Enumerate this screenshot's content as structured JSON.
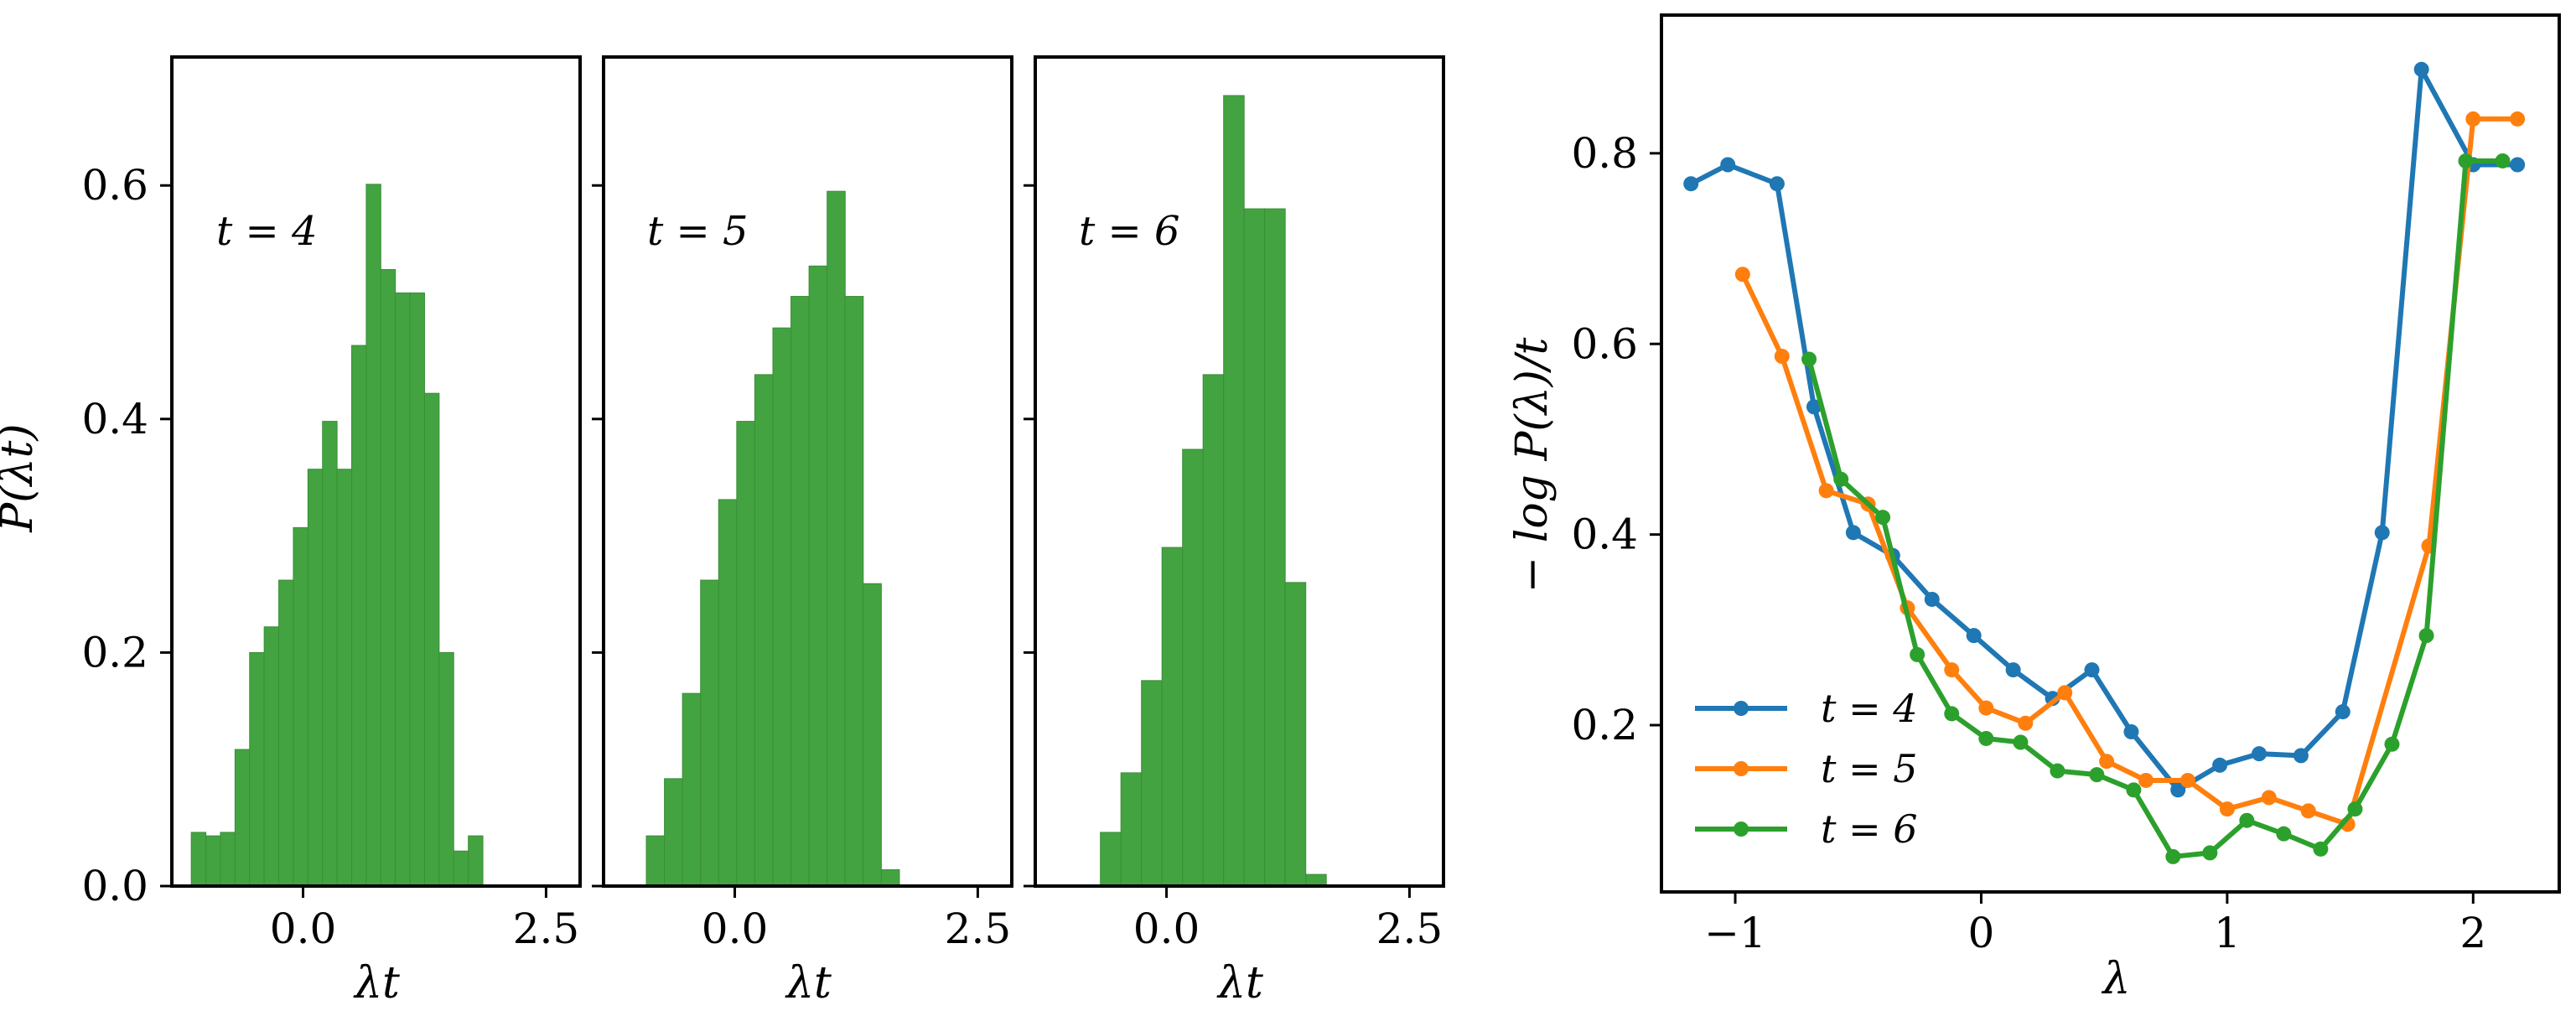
{
  "chart_data": [
    {
      "type": "bar",
      "title": "",
      "annotation": "t = 4",
      "xlabel": "λt",
      "ylabel": "P(λt)",
      "xlim": [
        -1.35,
        2.85
      ],
      "ylim": [
        0.0,
        0.71
      ],
      "xticks": [
        0.0,
        2.5
      ],
      "xtick_labels": [
        "0.0",
        "2.5"
      ],
      "yticks": [
        0.0,
        0.2,
        0.4,
        0.6
      ],
      "ytick_labels": [
        "0.0",
        "0.2",
        "0.4",
        "0.6"
      ],
      "bin_start": -1.15,
      "bin_width": 0.15,
      "values": [
        0.046,
        0.043,
        0.046,
        0.117,
        0.2,
        0.222,
        0.262,
        0.307,
        0.357,
        0.398,
        0.357,
        0.463,
        0.601,
        0.528,
        0.508,
        0.508,
        0.422,
        0.2,
        0.03,
        0.043
      ],
      "color": "#43a341"
    },
    {
      "type": "bar",
      "title": "",
      "annotation": "t = 5",
      "xlabel": "λt",
      "ylabel": "",
      "xlim": [
        -1.35,
        2.85
      ],
      "ylim": [
        0.0,
        0.71
      ],
      "xticks": [
        0.0,
        2.5
      ],
      "xtick_labels": [
        "0.0",
        "2.5"
      ],
      "yticks": [
        0.0,
        0.2,
        0.4,
        0.6
      ],
      "bin_start": -0.91,
      "bin_width": 0.186,
      "values": [
        0.043,
        0.092,
        0.165,
        0.262,
        0.331,
        0.398,
        0.438,
        0.478,
        0.505,
        0.531,
        0.595,
        0.505,
        0.259,
        0.014
      ],
      "color": "#43a341"
    },
    {
      "type": "bar",
      "title": "",
      "annotation": "t = 6",
      "xlabel": "λt",
      "ylabel": "",
      "xlim": [
        -1.35,
        2.85
      ],
      "ylim": [
        0.0,
        0.71
      ],
      "xticks": [
        0.0,
        2.5
      ],
      "xtick_labels": [
        "0.0",
        "2.5"
      ],
      "yticks": [
        0.0,
        0.2,
        0.4,
        0.6
      ],
      "bin_start": -0.68,
      "bin_width": 0.2113,
      "values": [
        0.046,
        0.097,
        0.176,
        0.29,
        0.374,
        0.438,
        0.677,
        0.58,
        0.58,
        0.26,
        0.01
      ],
      "color": "#43a341"
    },
    {
      "type": "line",
      "title": "",
      "xlabel": "λ",
      "ylabel": "− log P(λ)/t",
      "xlim": [
        -1.3,
        2.35
      ],
      "ylim": [
        0.025,
        0.945
      ],
      "xticks": [
        -1,
        0,
        1,
        2
      ],
      "xtick_labels": [
        "−1",
        "0",
        "1",
        "2"
      ],
      "yticks": [
        0.2,
        0.4,
        0.6,
        0.8
      ],
      "ytick_labels": [
        "0.2",
        "0.4",
        "0.6",
        "0.8"
      ],
      "legend_position": "lower-left",
      "series": [
        {
          "name": "t = 4",
          "color": "#1f77b4",
          "x": [
            -1.18,
            -1.03,
            -0.83,
            -0.68,
            -0.52,
            -0.36,
            -0.2,
            -0.03,
            0.13,
            0.29,
            0.45,
            0.61,
            0.8,
            0.97,
            1.13,
            1.3,
            1.47,
            1.63,
            1.79,
            2.0,
            2.18
          ],
          "y": [
            0.768,
            0.788,
            0.768,
            0.534,
            0.402,
            0.378,
            0.332,
            0.294,
            0.258,
            0.228,
            0.258,
            0.193,
            0.132,
            0.158,
            0.17,
            0.168,
            0.214,
            0.402,
            0.888,
            0.788,
            0.788
          ]
        },
        {
          "name": "t = 5",
          "color": "#ff7f0e",
          "x": [
            -0.97,
            -0.81,
            -0.63,
            -0.46,
            -0.3,
            -0.12,
            0.02,
            0.18,
            0.34,
            0.51,
            0.67,
            0.84,
            1.0,
            1.17,
            1.33,
            1.49,
            1.82,
            2.0,
            2.18
          ],
          "y": [
            0.673,
            0.587,
            0.446,
            0.432,
            0.323,
            0.258,
            0.218,
            0.202,
            0.234,
            0.162,
            0.142,
            0.142,
            0.112,
            0.124,
            0.11,
            0.096,
            0.388,
            0.836,
            0.836
          ]
        },
        {
          "name": "t = 6",
          "color": "#2ca02c",
          "x": [
            -0.7,
            -0.57,
            -0.4,
            -0.26,
            -0.12,
            0.02,
            0.16,
            0.31,
            0.47,
            0.62,
            0.78,
            0.93,
            1.08,
            1.23,
            1.38,
            1.52,
            1.67,
            1.81,
            1.97,
            2.12
          ],
          "y": [
            0.584,
            0.458,
            0.418,
            0.274,
            0.212,
            0.186,
            0.182,
            0.152,
            0.148,
            0.132,
            0.062,
            0.066,
            0.1,
            0.086,
            0.07,
            0.112,
            0.18,
            0.294,
            0.792,
            0.792
          ]
        }
      ]
    }
  ]
}
